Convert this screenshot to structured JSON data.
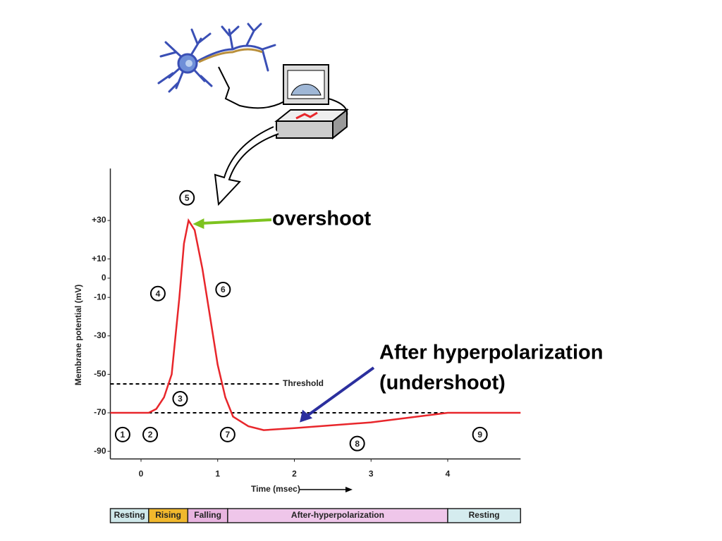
{
  "chart_data": {
    "type": "line",
    "x_label": "Time (msec)",
    "y_label": "Membrane potential (mV)",
    "xlim": [
      -0.4,
      4.95
    ],
    "ylim": [
      -94,
      57
    ],
    "xticks": [
      0,
      1,
      2,
      3,
      4
    ],
    "yticks": [
      {
        "value": 30,
        "label": "+30"
      },
      {
        "value": 10,
        "label": "+10"
      },
      0,
      -10,
      -30,
      -50,
      -70,
      -90
    ],
    "color": "#e8262b",
    "x": [
      -0.4,
      0.1,
      0.2,
      0.3,
      0.4,
      0.5,
      0.56,
      0.62,
      0.7,
      0.8,
      0.9,
      1.0,
      1.1,
      1.2,
      1.4,
      1.6,
      2.0,
      3.0,
      4.0,
      4.95
    ],
    "values": [
      -70,
      -70,
      -68,
      -62,
      -50,
      -10,
      18,
      30,
      25,
      5,
      -20,
      -45,
      -62,
      -72,
      -77,
      -79,
      -78,
      -75,
      -70,
      -70
    ],
    "reference_lines": [
      {
        "value": -55,
        "label": "Threshold"
      },
      {
        "value": -70
      }
    ],
    "markers": [
      {
        "label": "1",
        "x": -0.24,
        "y": -81.3
      },
      {
        "label": "2",
        "x": 0.12,
        "y": -81.3
      },
      {
        "label": "3",
        "x": 0.51,
        "y": -62.7
      },
      {
        "label": "4",
        "x": 0.22,
        "y": -8
      },
      {
        "label": "5",
        "x": 0.6,
        "y": 41.8
      },
      {
        "label": "6",
        "x": 1.07,
        "y": -5.9
      },
      {
        "label": "7",
        "x": 1.13,
        "y": -81.3
      },
      {
        "label": "8",
        "x": 2.82,
        "y": -86
      },
      {
        "label": "9",
        "x": 4.42,
        "y": -81.3
      }
    ],
    "annotations": [
      {
        "text": "overshoot",
        "x": 0.62,
        "y": 30,
        "color": "#7dc31f"
      },
      {
        "text": [
          "After hyperpolarization",
          "(undershoot)"
        ],
        "x": 2.07,
        "y": -75,
        "color": "#2b2f9e"
      }
    ],
    "phases": [
      {
        "label": "Resting",
        "start": -0.4,
        "end": 0.1,
        "color": "#cfe8ea"
      },
      {
        "label": "Rising",
        "start": 0.1,
        "end": 0.61,
        "color": "#f1b82d"
      },
      {
        "label": "Falling",
        "start": 0.61,
        "end": 1.13,
        "color": "#e8b4e0"
      },
      {
        "label": "After-hyperpolarization",
        "start": 1.13,
        "end": 4.0,
        "color": "#efc6ea"
      },
      {
        "label": "Resting",
        "start": 4.0,
        "end": 4.95,
        "color": "#d5ecef"
      }
    ]
  }
}
